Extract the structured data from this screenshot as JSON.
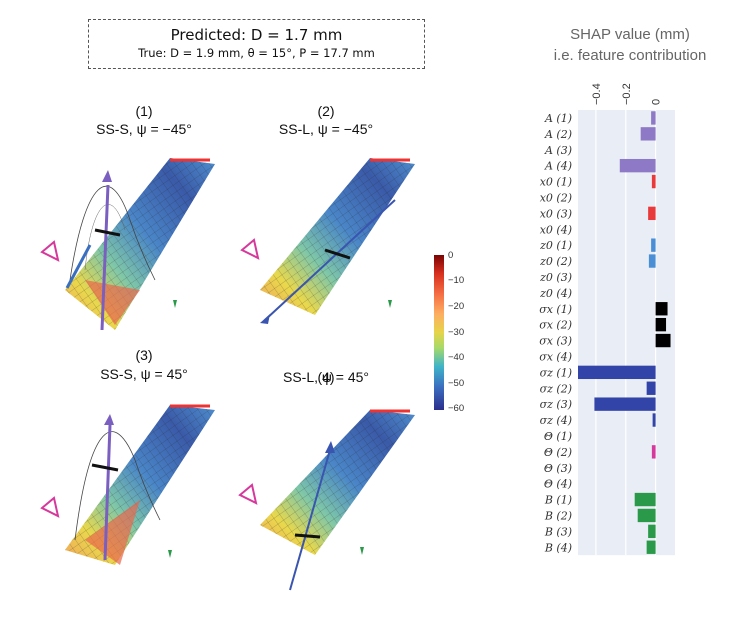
{
  "header": {
    "predicted": "Predicted: D = 1.7 mm",
    "truth": "True: D = 1.9 mm, θ = 15°, P = 17.7 mm"
  },
  "panels": [
    {
      "num": "(1)",
      "title": "SS-S, ψ = −45°"
    },
    {
      "num": "(2)",
      "title": "SS-L, ψ = −45°"
    },
    {
      "num": "(3)",
      "title": "SS-S, ψ = 45°"
    },
    {
      "num": "(4)",
      "title": "SS-L, ψ = 45°"
    }
  ],
  "colorbar": {
    "ticks": [
      "0",
      "−10",
      "−20",
      "−30",
      "−40",
      "−50",
      "−60"
    ],
    "range": [
      -60,
      0
    ]
  },
  "chart_data": {
    "type": "bar",
    "orientation": "horizontal",
    "title": "SHAP value (mm)",
    "subtitle": "i.e. feature contribution",
    "xlim": [
      -0.52,
      0.13
    ],
    "xticks": [
      -0.4,
      -0.2,
      0
    ],
    "xtick_labels": [
      "−0.4",
      "−0.2",
      "0"
    ],
    "categories": [
      "A (1)",
      "A (2)",
      "A (3)",
      "A (4)",
      "x0 (1)",
      "x0 (2)",
      "x0 (3)",
      "x0 (4)",
      "z0 (1)",
      "z0 (2)",
      "z0 (3)",
      "z0 (4)",
      "σx (1)",
      "σx (2)",
      "σx (3)",
      "σx (4)",
      "σz (1)",
      "σz (2)",
      "σz (3)",
      "σz (4)",
      "Θ (1)",
      "Θ (2)",
      "Θ (3)",
      "Θ (4)",
      "B (1)",
      "B (2)",
      "B (3)",
      "B (4)"
    ],
    "values": [
      -0.03,
      -0.1,
      0,
      -0.24,
      -0.025,
      0,
      -0.05,
      0,
      -0.03,
      -0.045,
      0,
      0,
      0.08,
      0.07,
      0.1,
      0,
      -0.52,
      -0.06,
      -0.41,
      -0.02,
      0,
      -0.025,
      0,
      0,
      -0.14,
      -0.12,
      -0.05,
      -0.06
    ],
    "bar_colors": [
      "#8e79c6",
      "#8e79c6",
      "#8e79c6",
      "#8e79c6",
      "#e83a3a",
      "#e83a3a",
      "#e83a3a",
      "#e83a3a",
      "#4a8fd6",
      "#4a8fd6",
      "#4a8fd6",
      "#4a8fd6",
      "#000000",
      "#000000",
      "#000000",
      "#000000",
      "#3344a8",
      "#3344a8",
      "#3344a8",
      "#3344a8",
      "#d6399c",
      "#d6399c",
      "#d6399c",
      "#d6399c",
      "#2a9a4a",
      "#2a9a4a",
      "#2a9a4a",
      "#2a9a4a"
    ]
  }
}
